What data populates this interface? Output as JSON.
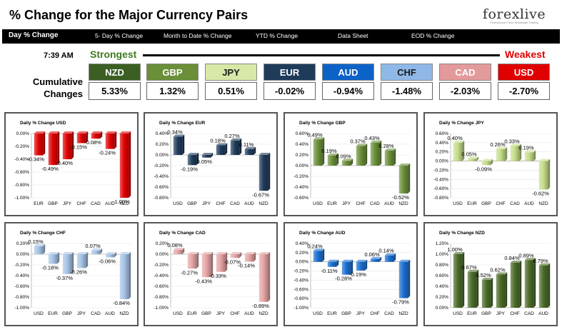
{
  "header": {
    "title": "% Change for the Major Currency Pairs",
    "logo_text": "forexlive",
    "logo_tagline": "Professional Forex Wholesale Trading"
  },
  "nav": {
    "items": [
      "Day % Change",
      "5- Day % Change",
      "Month to Date % Change",
      "YTD % Change",
      "Data Sheet",
      "EOD % Change"
    ]
  },
  "summary": {
    "time": "7:39 AM",
    "strongest_label": "Strongest",
    "weakest_label": "Weakest",
    "row_label": "Cumulative Changes",
    "currencies": [
      {
        "code": "NZD",
        "value": "5.33%",
        "color": "#3b5e22",
        "text_color": "#ffffff"
      },
      {
        "code": "GBP",
        "value": "1.32%",
        "color": "#6a8f38",
        "text_color": "#ffffff"
      },
      {
        "code": "JPY",
        "value": "0.51%",
        "color": "#d8e8a8",
        "text_color": "#1a1a1a"
      },
      {
        "code": "EUR",
        "value": "-0.02%",
        "color": "#1f3b5a",
        "text_color": "#ffffff"
      },
      {
        "code": "AUD",
        "value": "-0.94%",
        "color": "#0d62c8",
        "text_color": "#ffffff"
      },
      {
        "code": "CHF",
        "value": "-1.48%",
        "color": "#8fb8e8",
        "text_color": "#1a1a1a"
      },
      {
        "code": "CAD",
        "value": "-2.03%",
        "color": "#e39a9a",
        "text_color": "#ffffff"
      },
      {
        "code": "USD",
        "value": "-2.70%",
        "color": "#e00000",
        "text_color": "#ffffff"
      }
    ]
  },
  "chart_data": [
    {
      "type": "bar",
      "title": "Daily % Change USD",
      "categories": [
        "EUR",
        "GBP",
        "JPY",
        "CHF",
        "CAD",
        "AUD",
        "NZD"
      ],
      "values": [
        -0.34,
        -0.49,
        -0.4,
        -0.15,
        -0.08,
        -0.24,
        -1.0
      ],
      "labels": [
        "-0.34%",
        "-0.49%",
        "-0.40%",
        "-0.15%",
        "-0.08%",
        "-0.24%",
        "-1.00%"
      ],
      "ylim": [
        -1.0,
        0.0
      ],
      "yticks": [
        0.0,
        -0.2,
        -0.4,
        -0.6,
        -0.8,
        -1.0
      ],
      "ytick_labels": [
        "0.00%",
        "-0.20%",
        "-0.40%",
        "-0.60%",
        "-0.80%",
        "-1.00%"
      ],
      "color": "#e00000",
      "last_color": "#e00000"
    },
    {
      "type": "bar",
      "title": "Daily % Change EUR",
      "categories": [
        "USD",
        "GBP",
        "JPY",
        "CHF",
        "CAD",
        "AUD",
        "NZD"
      ],
      "values": [
        0.34,
        -0.19,
        -0.05,
        0.18,
        0.27,
        0.11,
        -0.67
      ],
      "labels": [
        "0.34%",
        "-0.19%",
        "-0.05%",
        "0.18%",
        "0.27%",
        "0.11%",
        "-0.67%"
      ],
      "ylim": [
        -0.8,
        0.4
      ],
      "yticks": [
        0.4,
        0.2,
        0.0,
        -0.2,
        -0.4,
        -0.6,
        -0.8
      ],
      "ytick_labels": [
        "0.40%",
        "0.20%",
        "0.00%",
        "-0.20%",
        "-0.40%",
        "-0.60%",
        "-0.80%"
      ],
      "color": "#1f3b5a",
      "last_color": "#1f3b5a"
    },
    {
      "type": "bar",
      "title": "Daily % Change GBP",
      "categories": [
        "USD",
        "EUR",
        "JPY",
        "CHF",
        "CAD",
        "AUD",
        "NZD"
      ],
      "values": [
        0.49,
        0.19,
        0.09,
        0.37,
        0.43,
        0.28,
        -0.52
      ],
      "labels": [
        "0.49%",
        "0.19%",
        "0.09%",
        "0.37%",
        "0.43%",
        "0.28%",
        "-0.52%"
      ],
      "ylim": [
        -0.6,
        0.6
      ],
      "yticks": [
        0.6,
        0.4,
        0.2,
        0.0,
        -0.2,
        -0.4,
        -0.6
      ],
      "ytick_labels": [
        "0.60%",
        "0.40%",
        "0.20%",
        "0.00%",
        "-0.20%",
        "-0.40%",
        "-0.60%"
      ],
      "color": "#6a8f38",
      "last_color": "#6a8f38"
    },
    {
      "type": "bar",
      "title": "Daily % Change JPY",
      "categories": [
        "USD",
        "EUR",
        "GBP",
        "CHF",
        "CAD",
        "AUD",
        "NZD"
      ],
      "values": [
        0.4,
        0.05,
        -0.09,
        0.26,
        0.33,
        0.19,
        -0.62
      ],
      "labels": [
        "0.40%",
        "0.05%",
        "-0.09%",
        "0.26%",
        "0.33%",
        "0.19%",
        "-0.62%"
      ],
      "ylim": [
        -0.8,
        0.6
      ],
      "yticks": [
        0.6,
        0.4,
        0.2,
        0.0,
        -0.2,
        -0.4,
        -0.6,
        -0.8
      ],
      "ytick_labels": [
        "0.60%",
        "0.40%",
        "0.20%",
        "0.00%",
        "-0.20%",
        "-0.40%",
        "-0.60%",
        "-0.80%"
      ],
      "color": "#c4dd88",
      "last_color": "#c4dd88"
    },
    {
      "type": "bar",
      "title": "Daily % Change CHF",
      "categories": [
        "USD",
        "EUR",
        "GBP",
        "JPY",
        "CAD",
        "AUD",
        "NZD"
      ],
      "values": [
        0.15,
        -0.18,
        -0.37,
        -0.26,
        0.07,
        -0.06,
        -0.84
      ],
      "labels": [
        "0.15%",
        "-0.18%",
        "-0.37%",
        "-0.26%",
        "0.07%",
        "-0.06%",
        "-0.84%"
      ],
      "ylim": [
        -1.0,
        0.2
      ],
      "yticks": [
        0.2,
        0.0,
        -0.2,
        -0.4,
        -0.6,
        -0.8,
        -1.0
      ],
      "ytick_labels": [
        "0.20%",
        "0.00%",
        "-0.20%",
        "-0.40%",
        "-0.60%",
        "-0.80%",
        "-1.00%"
      ],
      "color": "#a6c4e6",
      "last_color": "#a6c4e6"
    },
    {
      "type": "bar",
      "title": "Daily % Change CAD",
      "categories": [
        "USD",
        "EUR",
        "GBP",
        "JPY",
        "CHF",
        "AUD",
        "NZD"
      ],
      "values": [
        0.08,
        -0.27,
        -0.43,
        -0.33,
        -0.07,
        -0.14,
        -0.89
      ],
      "labels": [
        "0.08%",
        "-0.27%",
        "-0.43%",
        "-0.33%",
        "-0.07%",
        "-0.14%",
        "-0.89%"
      ],
      "ylim": [
        -1.0,
        0.2
      ],
      "yticks": [
        0.2,
        0.0,
        -0.2,
        -0.4,
        -0.6,
        -0.8,
        -1.0
      ],
      "ytick_labels": [
        "0.20%",
        "0.00%",
        "-0.20%",
        "-0.40%",
        "-0.60%",
        "-0.80%",
        "-1.00%"
      ],
      "color": "#e6a4a4",
      "last_color": "#e6a4a4"
    },
    {
      "type": "bar",
      "title": "Daily % Change AUD",
      "categories": [
        "USD",
        "EUR",
        "GBP",
        "JPY",
        "CHF",
        "CAD",
        "NZD"
      ],
      "values": [
        0.24,
        -0.11,
        -0.28,
        -0.19,
        0.06,
        0.14,
        -0.79
      ],
      "labels": [
        "0.24%",
        "-0.11%",
        "-0.28%",
        "-0.19%",
        "0.06%",
        "0.14%",
        "-0.79%"
      ],
      "ylim": [
        -1.0,
        0.4
      ],
      "yticks": [
        0.4,
        0.2,
        0.0,
        -0.2,
        -0.4,
        -0.6,
        -0.8,
        -1.0
      ],
      "ytick_labels": [
        "0.40%",
        "0.20%",
        "0.00%",
        "-0.20%",
        "-0.40%",
        "-0.60%",
        "-0.80%",
        "-1.00%"
      ],
      "color": "#1a6fd0",
      "last_color": "#1a6fd0"
    },
    {
      "type": "bar",
      "title": "Daily % Change NZD",
      "categories": [
        "USD",
        "EUR",
        "GBP",
        "JPY",
        "CHF",
        "CAD",
        "AUD"
      ],
      "values": [
        1.0,
        0.67,
        0.52,
        0.62,
        0.84,
        0.89,
        0.79
      ],
      "labels": [
        "1.00%",
        "0.67%",
        "0.52%",
        "0.62%",
        "0.84%",
        "0.89%",
        "0.79%"
      ],
      "ylim": [
        0.0,
        1.2
      ],
      "yticks": [
        1.2,
        1.0,
        0.8,
        0.6,
        0.4,
        0.2,
        0.0
      ],
      "ytick_labels": [
        "1.20%",
        "1.00%",
        "0.80%",
        "0.60%",
        "0.40%",
        "0.20%",
        "0.00%"
      ],
      "color": "#4a6b28",
      "last_color": "#4a6b28"
    }
  ]
}
